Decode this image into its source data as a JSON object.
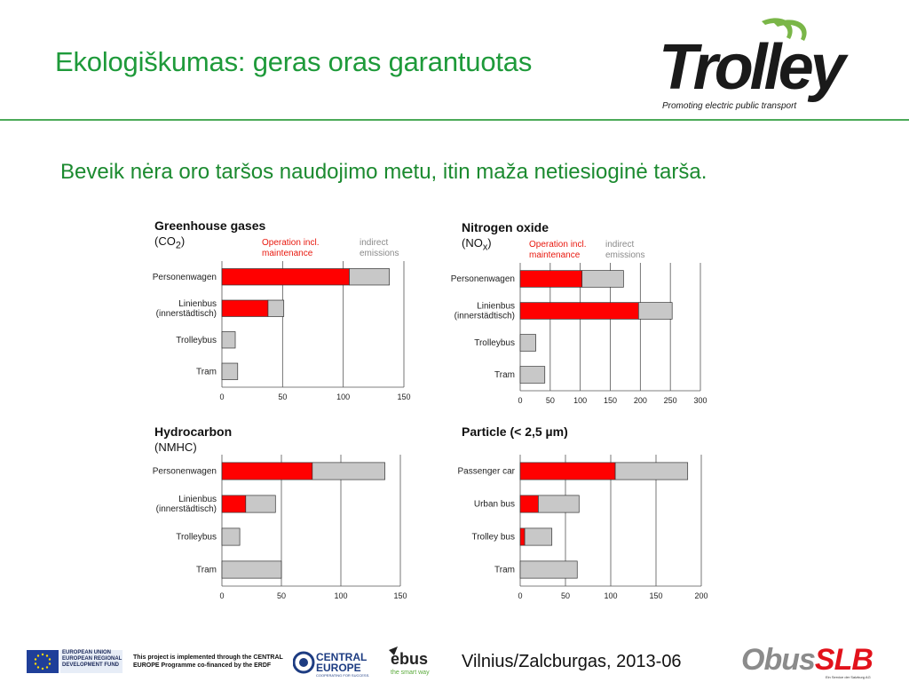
{
  "slide": {
    "title": "Ekologiškumas: geras oras garantuotas",
    "subtitle": "Beveik nėra oro taršos naudojimo metu, itin maža netiesioginė tarša."
  },
  "logo": {
    "name": "Trolley",
    "tagline": "Promoting electric public transport",
    "accent": "#1e9a3a"
  },
  "colors": {
    "title": "#1e9a3a",
    "operation": "#ff0000",
    "indirect": "#c8c8c8"
  },
  "chart_data": [
    {
      "type": "bar",
      "stacked": true,
      "orientation": "horizontal",
      "title": "Greenhouse gases",
      "subtitle": "(CO2)",
      "categories": [
        "Personenwagen",
        "Linienbus\n(innerstädtisch)",
        "Trolleybus",
        "Tram"
      ],
      "series": [
        {
          "name": "Operation incl.\nmaintenance",
          "values": [
            105,
            38,
            0,
            0
          ]
        },
        {
          "name": "indirect\nemissions",
          "values": [
            33,
            13,
            11,
            13
          ]
        }
      ],
      "xlim": [
        0,
        150
      ],
      "xticks": [
        0,
        50,
        100,
        150
      ],
      "grid": true
    },
    {
      "type": "bar",
      "stacked": true,
      "orientation": "horizontal",
      "title": "Nitrogen oxide",
      "subtitle": "(NOx)",
      "categories": [
        "Personenwagen",
        "Linienbus\n(innerstädtisch)",
        "Trolleybus",
        "Tram"
      ],
      "series": [
        {
          "name": "Operation incl.\nmaintenance",
          "values": [
            103,
            197,
            0,
            0
          ]
        },
        {
          "name": "indirect\nemissions",
          "values": [
            69,
            56,
            26,
            41
          ]
        }
      ],
      "xlim": [
        0,
        300
      ],
      "xticks": [
        0,
        50,
        100,
        150,
        200,
        250,
        300
      ],
      "grid": true
    },
    {
      "type": "bar",
      "stacked": true,
      "orientation": "horizontal",
      "title": "Hydrocarbon",
      "subtitle": "(NMHC)",
      "categories": [
        "Personenwagen",
        "Linienbus\n(innerstädtisch)",
        "Trolleybus",
        "Tram"
      ],
      "series": [
        {
          "name": "Operation",
          "values": [
            76,
            20,
            0,
            0
          ]
        },
        {
          "name": "indirect",
          "values": [
            61,
            25,
            15,
            50
          ]
        }
      ],
      "xlim": [
        0,
        150
      ],
      "xticks": [
        0,
        50,
        100,
        150
      ],
      "grid": true
    },
    {
      "type": "bar",
      "stacked": true,
      "orientation": "horizontal",
      "title": "Particle (< 2,5 µm)",
      "categories": [
        "Passenger car",
        "Urban bus",
        "Trolley bus",
        "Tram"
      ],
      "series": [
        {
          "name": "Operation",
          "values": [
            105,
            20,
            5,
            0
          ]
        },
        {
          "name": "indirect",
          "values": [
            80,
            45,
            30,
            63
          ]
        }
      ],
      "xlim": [
        0,
        200
      ],
      "xticks": [
        0,
        50,
        100,
        150,
        200
      ],
      "grid": true
    }
  ],
  "footer": {
    "eu_text": "EUROPEAN UNION\nEUROPEAN REGIONAL\nDEVELOPMENT FUND",
    "project_text": "This project is implemented through the CENTRAL EUROPE Programme co-financed by the ERDF",
    "ce_name": "CENTRAL\nEUROPE",
    "ce_tag": "COOPERATING FOR SUCCESS.",
    "ebus_name": "ebus",
    "ebus_tag": "the smart way",
    "date": "Vilnius/Zalcburgas, 2013-06",
    "obus_name": "Obus",
    "obus_brand": "SLB",
    "obus_tag": "Ein Service der Salzburg AG"
  }
}
